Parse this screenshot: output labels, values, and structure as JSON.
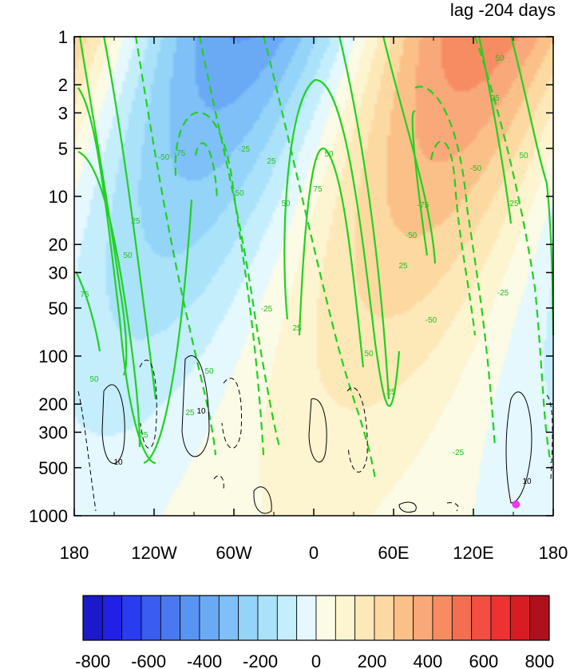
{
  "chart_data": {
    "type": "heatmap",
    "title": "lag -204 days",
    "x_axis": {
      "range": [
        -180,
        180
      ],
      "ticks": [
        {
          "value": -180,
          "label": "180"
        },
        {
          "value": -120,
          "label": "120W"
        },
        {
          "value": -60,
          "label": "60W"
        },
        {
          "value": 0,
          "label": "0"
        },
        {
          "value": 60,
          "label": "60E"
        },
        {
          "value": 120,
          "label": "120E"
        },
        {
          "value": 180,
          "label": "180"
        }
      ]
    },
    "y_axis": {
      "scale": "log",
      "reversed": true,
      "range": [
        1,
        1000
      ],
      "ticks": [
        {
          "value": 1,
          "label": "1"
        },
        {
          "value": 2,
          "label": "2"
        },
        {
          "value": 3,
          "label": "3"
        },
        {
          "value": 5,
          "label": "5"
        },
        {
          "value": 10,
          "label": "10"
        },
        {
          "value": 20,
          "label": "20"
        },
        {
          "value": 30,
          "label": "30"
        },
        {
          "value": 50,
          "label": "50"
        },
        {
          "value": 100,
          "label": "100"
        },
        {
          "value": 200,
          "label": "200"
        },
        {
          "value": 300,
          "label": "300"
        },
        {
          "value": 500,
          "label": "500"
        },
        {
          "value": 1000,
          "label": "1000"
        }
      ]
    },
    "colorbar": {
      "range": [
        -800,
        800
      ],
      "labels": [
        {
          "value": -800,
          "label": "-800"
        },
        {
          "value": -600,
          "label": "-600"
        },
        {
          "value": -400,
          "label": "-400"
        },
        {
          "value": -200,
          "label": "-200"
        },
        {
          "value": 0,
          "label": "0"
        },
        {
          "value": 200,
          "label": "200"
        },
        {
          "value": 400,
          "label": "400"
        },
        {
          "value": 600,
          "label": "600"
        },
        {
          "value": 800,
          "label": "800"
        }
      ],
      "colors": [
        "#1a1acc",
        "#2020e6",
        "#2a3cf0",
        "#3a5cf0",
        "#4a78ee",
        "#5a94f2",
        "#6aaaf5",
        "#7ec0f7",
        "#94d4f8",
        "#aae2fa",
        "#c4eefc",
        "#e4f8fe",
        "#fbfbe6",
        "#fdf4d0",
        "#fde8b8",
        "#fcd9a0",
        "#fbc088",
        "#f9a87a",
        "#f78c62",
        "#f46e52",
        "#f24e42",
        "#ee3232",
        "#d81c24",
        "#b0101c"
      ]
    },
    "marker": {
      "lon": 152,
      "p": 850,
      "color": "#ff33ff"
    },
    "green_contour_levels": [
      "-75",
      "-50",
      "-25",
      "25",
      "50",
      "75"
    ],
    "black_contour_levels": [
      "-10",
      "10"
    ]
  }
}
